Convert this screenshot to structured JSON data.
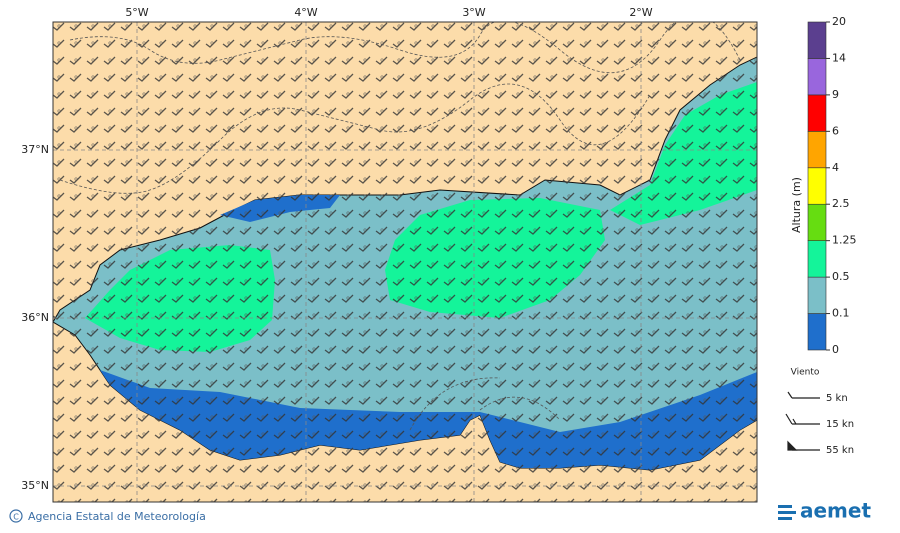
{
  "map": {
    "longitude_labels": [
      "5°W",
      "4°W",
      "3°W",
      "2°W"
    ],
    "latitude_labels": [
      "37°N",
      "36°N",
      "35°N"
    ],
    "colorbar": {
      "title": "Altura (m)",
      "levels": [
        0,
        0.1,
        0.5,
        1.25,
        2.5,
        4,
        6,
        9,
        14,
        20
      ],
      "colors": [
        "#1f6fcc",
        "#7bbfc8",
        "#14f49a",
        "#66dd11",
        "#ffff00",
        "#ffa500",
        "#ff0000",
        "#9966dd",
        "#5b3f8f"
      ]
    },
    "wind_legend": {
      "title": "Viento",
      "entries": [
        "5 kn",
        "15 kn",
        "55 kn"
      ]
    }
  },
  "footer": {
    "credit": "Agencia Estatal de Meteorología",
    "logo": "aemet"
  }
}
